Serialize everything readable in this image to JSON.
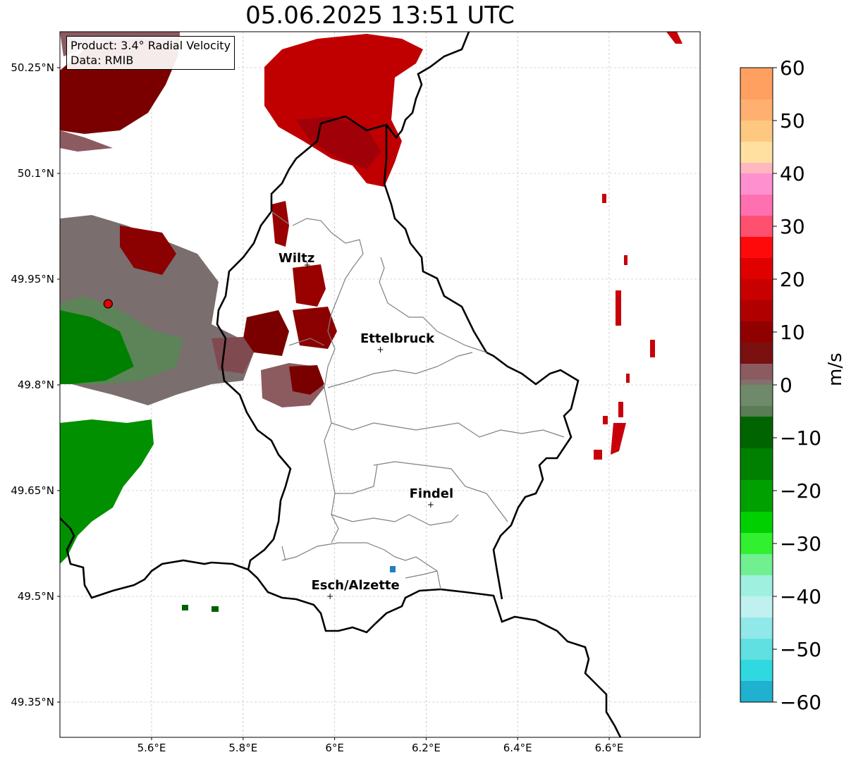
{
  "title": "05.06.2025 13:51 UTC",
  "info": {
    "product": "Product: 3.4° Radial Velocity",
    "data": "Data: RMIB"
  },
  "axes": {
    "lat_ticks": [
      "50.25°N",
      "50.1°N",
      "49.95°N",
      "49.8°N",
      "49.65°N",
      "49.5°N",
      "49.35°N"
    ],
    "lat_values": [
      50.25,
      50.1,
      49.95,
      49.8,
      49.65,
      49.5,
      49.35
    ],
    "lon_ticks": [
      "5.6°E",
      "5.8°E",
      "6°E",
      "6.2°E",
      "6.4°E",
      "6.6°E"
    ],
    "lon_values": [
      5.6,
      5.8,
      6.0,
      6.2,
      6.4,
      6.6
    ],
    "lon_range": [
      5.4,
      6.8
    ],
    "lat_range": [
      49.3,
      50.3
    ],
    "grid": true
  },
  "cities": [
    {
      "name": "Wiltz",
      "lon": 5.94,
      "lat": 49.97
    },
    {
      "name": "Ettelbruck",
      "lon": 6.1,
      "lat": 49.85
    },
    {
      "name": "Findel",
      "lon": 6.21,
      "lat": 49.63
    },
    {
      "name": "Esch/Alzette",
      "lon": 5.99,
      "lat": 49.5
    }
  ],
  "radar_site": {
    "lon": 5.505,
    "lat": 49.915
  },
  "colorbar": {
    "label": "m/s",
    "range": [
      -60,
      60
    ],
    "ticks": [
      "60",
      "50",
      "40",
      "30",
      "20",
      "10",
      "0",
      "−10",
      "−20",
      "−30",
      "−40",
      "−50",
      "−60"
    ],
    "tick_values": [
      60,
      50,
      40,
      30,
      20,
      10,
      0,
      -10,
      -20,
      -30,
      -40,
      -50,
      -60
    ]
  }
}
